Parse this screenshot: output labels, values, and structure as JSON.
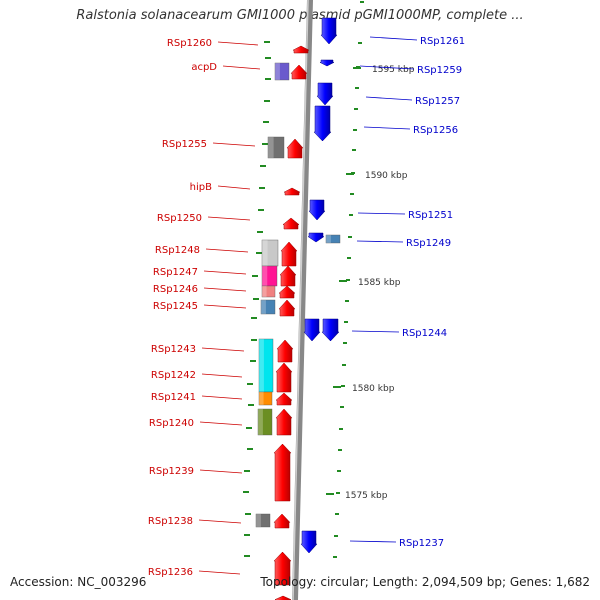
{
  "title": "Ralstonia solanacearum GMI1000 plasmid pGMI1000MP, complete ...",
  "footer": {
    "accession": "Accession: NC_003296",
    "summary": "Topology: circular; Length: 2,094,509 bp; Genes: 1,682"
  },
  "colors": {
    "forward": "#ff0000",
    "reverse": "#0000ff",
    "left_label": "#cc0000",
    "right_label": "#0000cc",
    "backbone": "#888888",
    "tick": "#228b22"
  },
  "scale_labels": [
    "1595 kbp",
    "1590 kbp",
    "1585 kbp",
    "1580 kbp",
    "1575 kbp"
  ],
  "left_genes": [
    "RSp1260",
    "acpD",
    "RSp1255",
    "hipB",
    "RSp1250",
    "RSp1248",
    "RSp1247",
    "RSp1246",
    "RSp1245",
    "RSp1243",
    "RSp1242",
    "RSp1241",
    "RSp1240",
    "RSp1239",
    "RSp1238",
    "RSp1236"
  ],
  "right_genes": [
    "RSp1261",
    "RSp1259",
    "RSp1257",
    "RSp1256",
    "RSp1251",
    "RSp1249",
    "RSp1244",
    "RSp1237"
  ]
}
